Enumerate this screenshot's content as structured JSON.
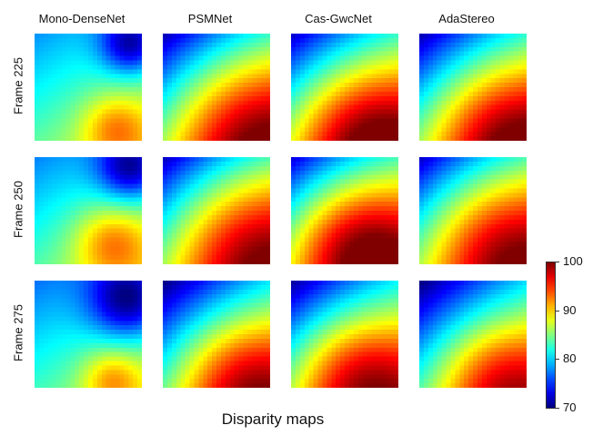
{
  "chart_data": {
    "type": "heatmap",
    "title": "",
    "xlabel": "Disparity maps",
    "columns": [
      "Mono-DenseNet",
      "PSMNet",
      "Cas-GwcNet",
      "AdaStereo"
    ],
    "rows": [
      "Frame 225",
      "Frame 250",
      "Frame 275"
    ],
    "colorbar": {
      "colormap": "jet",
      "min": 70,
      "max": 100,
      "ticks": [
        70,
        80,
        90,
        100
      ]
    },
    "panels": [
      [
        {
          "base": 83,
          "gx": 4,
          "gy": 6,
          "center": {
            "x": 0.75,
            "y": 0.88,
            "peak": 89.5,
            "radius": 0.22
          },
          "low": {
            "x": 0.9,
            "y": 0.1,
            "min": 72,
            "radius": 0.2
          }
        },
        {
          "base": 81,
          "gx": 10,
          "gy": 12,
          "center": {
            "x": 0.75,
            "y": 0.88,
            "peak": 92,
            "radius": 0.55
          }
        },
        {
          "base": 82,
          "gx": 10,
          "gy": 12,
          "center": {
            "x": 0.65,
            "y": 0.92,
            "peak": 94,
            "radius": 0.5
          }
        },
        {
          "base": 81.5,
          "gx": 10,
          "gy": 12,
          "center": {
            "x": 0.75,
            "y": 0.9,
            "peak": 92.5,
            "radius": 0.5
          }
        }
      ],
      [
        {
          "base": 82.5,
          "gx": 4,
          "gy": 6,
          "center": {
            "x": 0.72,
            "y": 0.8,
            "peak": 90,
            "radius": 0.25
          },
          "low": {
            "x": 0.9,
            "y": 0.1,
            "min": 71.5,
            "radius": 0.22
          }
        },
        {
          "base": 81,
          "gx": 10,
          "gy": 12,
          "center": {
            "x": 0.75,
            "y": 0.8,
            "peak": 92,
            "radius": 0.55
          }
        },
        {
          "base": 82,
          "gx": 10,
          "gy": 12,
          "center": {
            "x": 0.6,
            "y": 0.82,
            "peak": 95.5,
            "radius": 0.48
          }
        },
        {
          "base": 81.5,
          "gx": 10,
          "gy": 12,
          "center": {
            "x": 0.72,
            "y": 0.8,
            "peak": 92.5,
            "radius": 0.52
          }
        }
      ],
      [
        {
          "base": 82,
          "gx": 4,
          "gy": 6,
          "center": {
            "x": 0.72,
            "y": 0.92,
            "peak": 88.5,
            "radius": 0.2
          },
          "low": {
            "x": 0.88,
            "y": 0.18,
            "min": 70.5,
            "radius": 0.26
          }
        },
        {
          "base": 80.5,
          "gx": 10,
          "gy": 12,
          "center": {
            "x": 0.72,
            "y": 0.92,
            "peak": 91,
            "radius": 0.45
          }
        },
        {
          "base": 81,
          "gx": 10,
          "gy": 12,
          "center": {
            "x": 0.6,
            "y": 0.9,
            "peak": 92.5,
            "radius": 0.45
          }
        },
        {
          "base": 80.5,
          "gx": 10,
          "gy": 12,
          "center": {
            "x": 0.72,
            "y": 0.92,
            "peak": 90,
            "radius": 0.42
          }
        }
      ]
    ]
  }
}
